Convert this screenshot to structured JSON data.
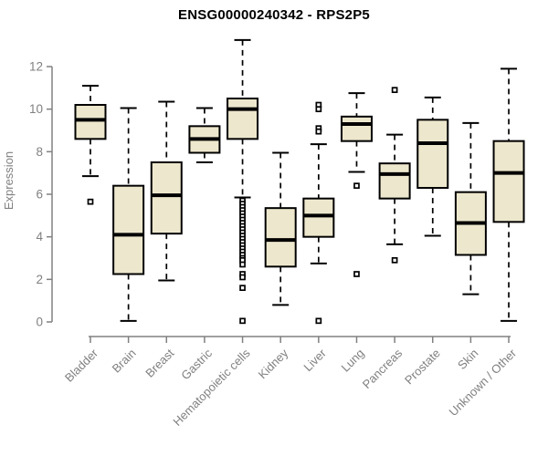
{
  "chart_data": {
    "type": "boxplot",
    "title": "ENSG00000240342 - RPS2P5",
    "xlabel": "",
    "ylabel": "Expression",
    "ylim": [
      0,
      12
    ],
    "yticks": [
      0,
      2,
      4,
      6,
      8,
      10,
      12
    ],
    "grid": false,
    "legend": false,
    "categories": [
      "Bladder",
      "Brain",
      "Breast",
      "Gastric",
      "Hematopoietic cells",
      "Kidney",
      "Liver",
      "Lung",
      "Pancreas",
      "Prostate",
      "Skin",
      "Unknown / Other"
    ],
    "series": [
      {
        "name": "Bladder",
        "low": 6.85,
        "q1": 8.6,
        "median": 9.5,
        "q3": 10.2,
        "high": 11.1,
        "outliers": [
          5.65
        ]
      },
      {
        "name": "Brain",
        "low": 0.05,
        "q1": 2.25,
        "median": 4.1,
        "q3": 6.4,
        "high": 10.05,
        "outliers": []
      },
      {
        "name": "Breast",
        "low": 1.95,
        "q1": 4.15,
        "median": 5.95,
        "q3": 7.5,
        "high": 10.35,
        "outliers": []
      },
      {
        "name": "Gastric",
        "low": 7.5,
        "q1": 7.95,
        "median": 8.6,
        "q3": 9.2,
        "high": 10.05,
        "outliers": []
      },
      {
        "name": "Hematopoietic cells",
        "low": 5.85,
        "q1": 8.6,
        "median": 10.0,
        "q3": 10.5,
        "high": 13.25,
        "outliers": [
          5.7,
          5.55,
          5.4,
          5.25,
          5.1,
          4.95,
          4.8,
          4.65,
          4.5,
          4.35,
          4.2,
          4.05,
          3.9,
          3.75,
          3.6,
          3.45,
          3.3,
          3.15,
          3.0,
          2.9,
          2.7,
          2.25,
          2.1,
          1.6,
          0.05
        ]
      },
      {
        "name": "Kidney",
        "low": 0.8,
        "q1": 2.6,
        "median": 3.85,
        "q3": 5.35,
        "high": 7.95,
        "outliers": []
      },
      {
        "name": "Liver",
        "low": 2.75,
        "q1": 4.0,
        "median": 5.0,
        "q3": 5.8,
        "high": 8.35,
        "outliers": [
          10.2,
          10.0,
          9.1,
          8.95,
          0.05
        ]
      },
      {
        "name": "Lung",
        "low": 7.05,
        "q1": 8.5,
        "median": 9.3,
        "q3": 9.65,
        "high": 10.75,
        "outliers": [
          6.4,
          2.25
        ]
      },
      {
        "name": "Pancreas",
        "low": 3.65,
        "q1": 5.8,
        "median": 6.95,
        "q3": 7.45,
        "high": 8.8,
        "outliers": [
          10.9,
          2.9
        ]
      },
      {
        "name": "Prostate",
        "low": 4.05,
        "q1": 6.3,
        "median": 8.4,
        "q3": 9.5,
        "high": 10.55,
        "outliers": []
      },
      {
        "name": "Skin",
        "low": 1.3,
        "q1": 3.15,
        "median": 4.65,
        "q3": 6.1,
        "high": 9.35,
        "outliers": []
      },
      {
        "name": "Unknown / Other",
        "low": 0.05,
        "q1": 4.7,
        "median": 7.0,
        "q3": 8.5,
        "high": 11.9,
        "outliers": []
      }
    ],
    "colors": {
      "box_fill": "#EDE7CD",
      "box_border": "#000000",
      "median": "#000000",
      "whisker": "#000000",
      "outlier": "#000000",
      "axis": "#808080",
      "tick_label": "#808080",
      "title": "#000000",
      "background": "#FFFFFF"
    }
  }
}
